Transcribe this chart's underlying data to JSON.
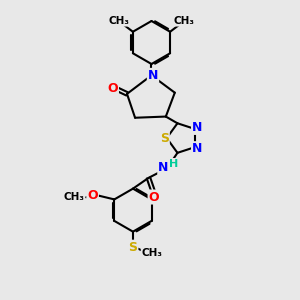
{
  "bg_color": "#e8e8e8",
  "bond_color": "#000000",
  "bond_width": 1.5,
  "atom_colors": {
    "N": "#0000ff",
    "O": "#ff0000",
    "S": "#ccaa00",
    "C": "#000000",
    "H": "#00cc99"
  },
  "fig_w": 3.0,
  "fig_h": 3.0,
  "dpi": 100,
  "xlim": [
    0,
    10
  ],
  "ylim": [
    0,
    10
  ]
}
